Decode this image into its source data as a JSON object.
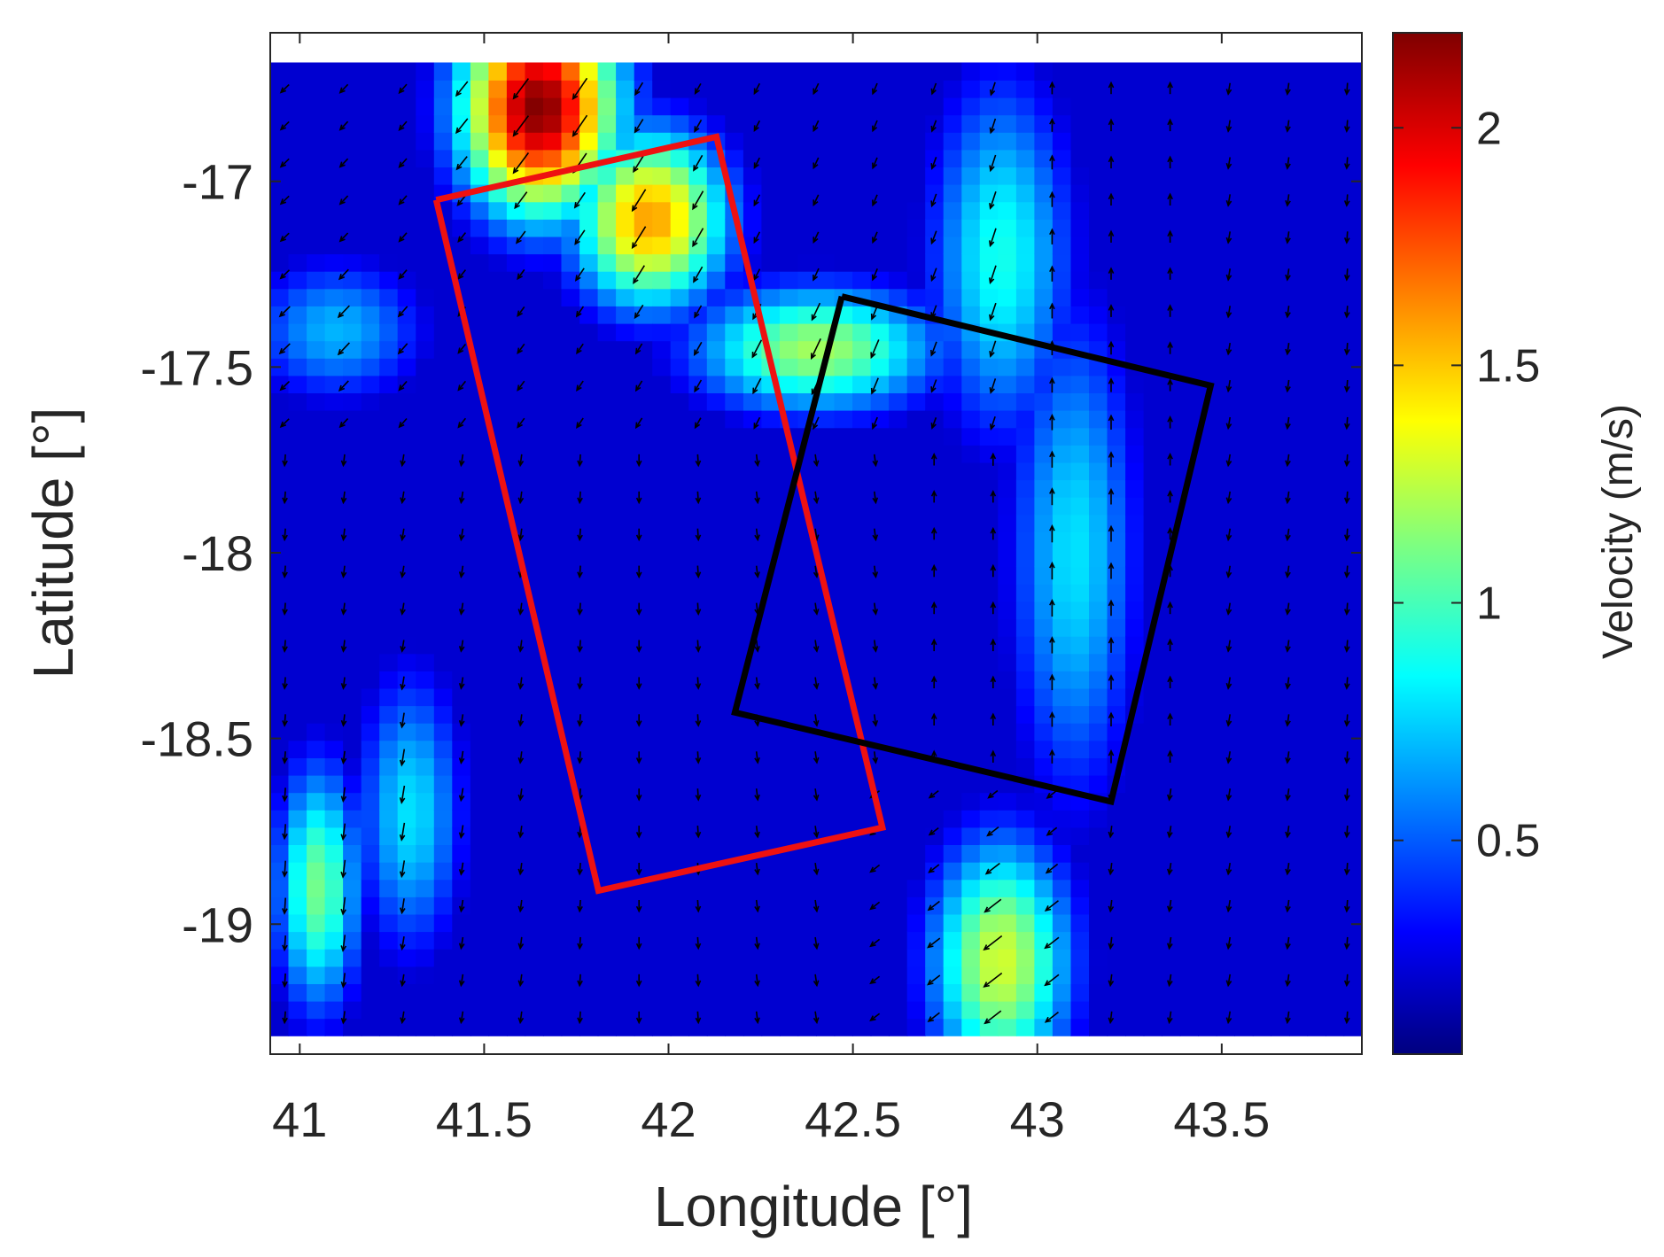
{
  "chart_data": {
    "type": "heatmap",
    "title": "",
    "xlabel": "Longitude [°]",
    "ylabel": "Latitude [°]",
    "xlim": [
      40.92,
      43.88
    ],
    "ylim": [
      -19.35,
      -16.6
    ],
    "xticks": [
      41,
      41.5,
      42,
      42.5,
      43,
      43.5
    ],
    "xtick_labels": [
      "41",
      "41.5",
      "42",
      "42.5",
      "43",
      "43.5"
    ],
    "yticks": [
      -17,
      -17.5,
      -18,
      -18.5,
      -19
    ],
    "ytick_labels": [
      "-17",
      "-17.5",
      "-18",
      "-18.5",
      "-19"
    ],
    "grid": false,
    "colormap": "jet",
    "colorbar": {
      "label": "Velocity (m/s)",
      "range": [
        0.05,
        2.2
      ],
      "ticks": [
        0.5,
        1,
        1.5,
        2
      ],
      "tick_labels": [
        "0.5",
        "1",
        "1.5",
        "2"
      ]
    },
    "velocity_features": [
      {
        "lon": 41.65,
        "lat": -16.8,
        "speed": 2.2,
        "spread_lon": 0.22,
        "spread_lat": 0.3
      },
      {
        "lon": 41.95,
        "lat": -17.1,
        "speed": 1.6,
        "spread_lon": 0.22,
        "spread_lat": 0.25
      },
      {
        "lon": 42.4,
        "lat": -17.45,
        "speed": 1.2,
        "spread_lon": 0.35,
        "spread_lat": 0.18
      },
      {
        "lon": 42.9,
        "lat": -17.2,
        "speed": 0.9,
        "spread_lon": 0.2,
        "spread_lat": 0.5
      },
      {
        "lon": 43.1,
        "lat": -18.0,
        "speed": 0.8,
        "spread_lon": 0.18,
        "spread_lat": 0.7
      },
      {
        "lon": 42.9,
        "lat": -19.1,
        "speed": 1.3,
        "spread_lon": 0.2,
        "spread_lat": 0.35
      },
      {
        "lon": 41.05,
        "lat": -18.9,
        "speed": 1.1,
        "spread_lon": 0.12,
        "spread_lat": 0.35
      },
      {
        "lon": 41.3,
        "lat": -18.7,
        "speed": 0.8,
        "spread_lon": 0.15,
        "spread_lat": 0.4
      },
      {
        "lon": 41.1,
        "lat": -17.4,
        "speed": 0.7,
        "spread_lon": 0.25,
        "spread_lat": 0.2
      }
    ],
    "polygons": [
      {
        "name": "red-box",
        "color": "#ee1111",
        "lon": [
          41.37,
          42.13,
          42.58,
          41.81,
          41.37
        ],
        "lat": [
          -17.05,
          -16.88,
          -18.74,
          -18.91,
          -17.05
        ]
      },
      {
        "name": "black-box",
        "color": "#000000",
        "lon": [
          42.47,
          43.47,
          43.2,
          42.18,
          42.47
        ],
        "lat": [
          -17.31,
          -17.55,
          -18.67,
          -18.43,
          -17.31
        ]
      }
    ]
  }
}
